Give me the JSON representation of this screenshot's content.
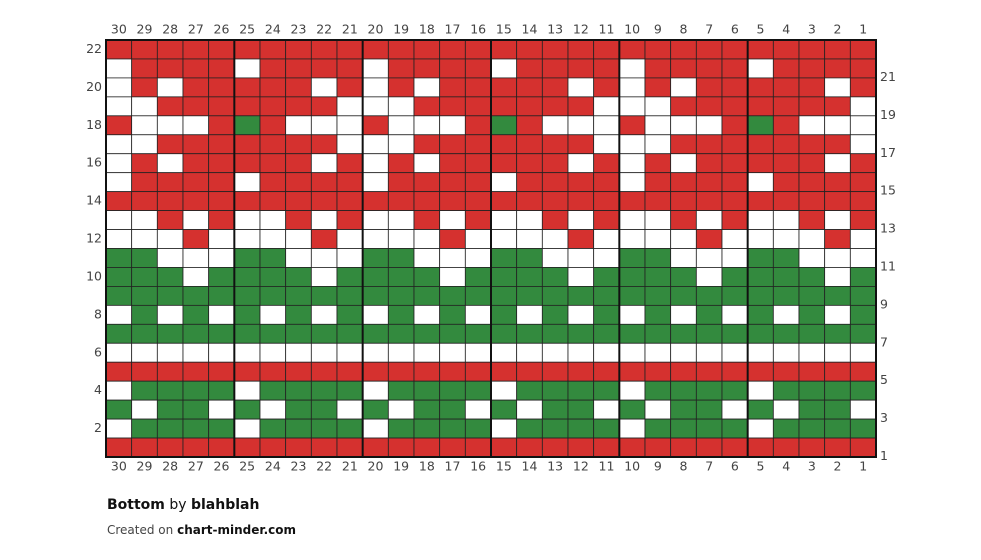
{
  "chart": {
    "type": "knitting-chart",
    "palette": {
      "R": "#d5312f",
      "G": "#338a3e",
      "W": "#ffffff"
    },
    "columns": [
      30,
      29,
      28,
      27,
      26,
      25,
      24,
      23,
      22,
      21,
      20,
      19,
      18,
      17,
      16,
      15,
      14,
      13,
      12,
      11,
      10,
      9,
      8,
      7,
      6,
      5,
      4,
      3,
      2,
      1
    ],
    "rows": [
      {
        "number": 22,
        "cells": "RRRRRRRRRRRRRRRRRRRRRRRRRRRRRR"
      },
      {
        "number": 21,
        "cells": "WRRRRWRRRRWRRRRWRRRRWRRRRWRRRR"
      },
      {
        "number": 20,
        "cells": "WRWRRRRRWRWRWRRRRRWRWRWRRRRRWR"
      },
      {
        "number": 19,
        "cells": "WWRRRRRRRWWWRRRRRRRWWWRRRRRRRW"
      },
      {
        "number": 18,
        "cells": "RWWWRGRWWWRWWWRGRWWWRWWWRGRWWW"
      },
      {
        "number": 17,
        "cells": "WWRRRRRRRWWWRRRRRRRWWWRRRRRRRW"
      },
      {
        "number": 16,
        "cells": "WRWRRRRRWRWRWRRRRRWRWRWRRRRRWR"
      },
      {
        "number": 15,
        "cells": "WRRRRWRRRRWRRRRWRRRRWRRRRWRRRR"
      },
      {
        "number": 14,
        "cells": "RRRRRRRRRRRRRRRRRRRRRRRRRRRRRR"
      },
      {
        "number": 13,
        "cells": "WWRWRWWRWRWWRWRWWRWRWWRWRWWRWR"
      },
      {
        "number": 12,
        "cells": "WWWRWWWWRWWWWRWWWWRWWWWRWWWWRW"
      },
      {
        "number": 11,
        "cells": "GGWWWGGWWWGGWWWGGWWWGGWWWGGWWW"
      },
      {
        "number": 10,
        "cells": "GGGWGGGGWGGGGWGGGGWGGGGWGGGGWG"
      },
      {
        "number": 9,
        "cells": "GGGGGGGGGGGGGGGGGGGGGGGGGGGGGG"
      },
      {
        "number": 8,
        "cells": "WGWGWGWGWGWGWGWGWGWGWGWGWGWGWG"
      },
      {
        "number": 7,
        "cells": "GGGGGGGGGGGGGGGGGGGGGGGGGGGGGG"
      },
      {
        "number": 6,
        "cells": "WWWWWWWWWWWWWWWWWWWWWWWWWWWWWW"
      },
      {
        "number": 5,
        "cells": "RRRRRRRRRRRRRRRRRRRRRRRRRRRRRR"
      },
      {
        "number": 4,
        "cells": "WGGGGWGGGGWGGGGWGGGGWGGGGWGGGG"
      },
      {
        "number": 3,
        "cells": "GWGGWGWGGWGWGGWGWGGWGWGGWGWGGW"
      },
      {
        "number": 2,
        "cells": "WGGGGWGGGGWGGGGWGGGGWGGGGWGGGG"
      },
      {
        "number": 1,
        "cells": "RRRRRRRRRRRRRRRRRRRRRRRRRRRRRR"
      }
    ]
  },
  "footer": {
    "title": "Bottom",
    "by": "by",
    "author": "blahblah",
    "created": "Created on",
    "site": "chart-minder.com"
  }
}
